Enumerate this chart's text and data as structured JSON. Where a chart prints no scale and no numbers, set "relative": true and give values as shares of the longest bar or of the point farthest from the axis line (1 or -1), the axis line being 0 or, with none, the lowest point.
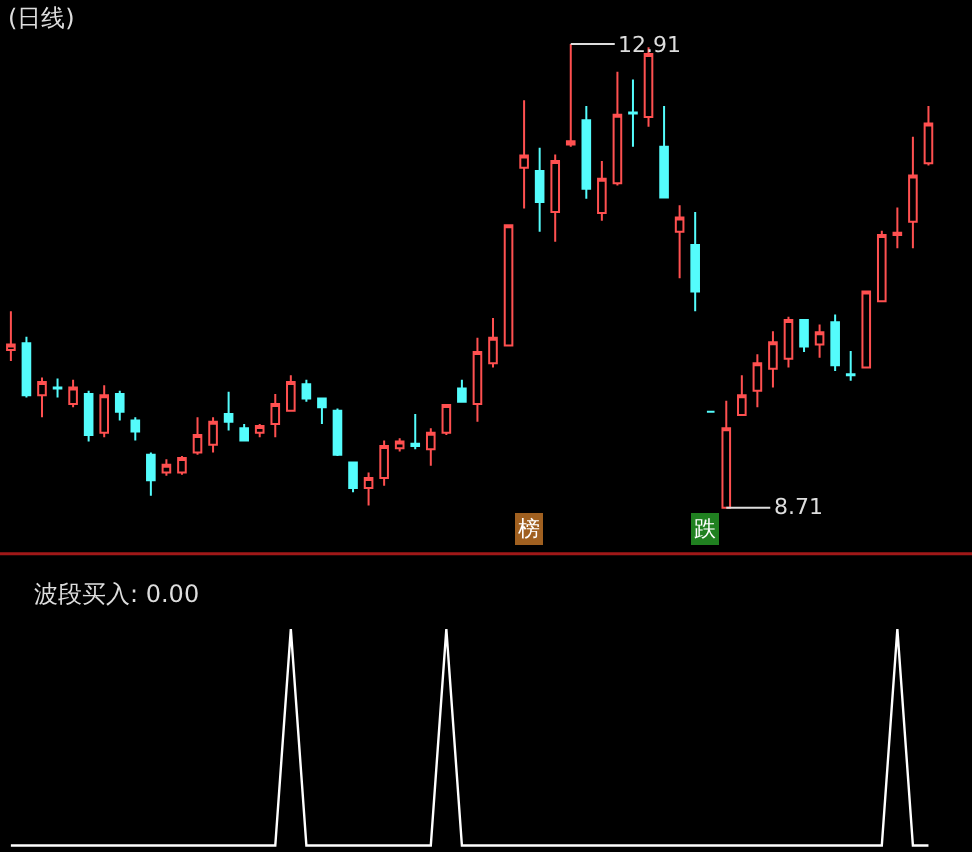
{
  "chart_data": [
    {
      "type": "candlestick",
      "title": "(日线)",
      "categories": [
        null,
        null,
        null,
        null,
        null,
        null,
        null,
        null,
        null,
        null,
        null,
        null,
        null,
        null,
        null,
        null,
        null,
        null,
        null,
        null,
        null,
        null,
        null,
        null,
        null,
        null,
        null,
        null,
        null,
        null,
        null,
        null,
        null,
        null,
        null,
        null,
        null,
        null,
        null,
        null,
        null,
        null,
        null,
        null,
        null,
        null,
        null,
        null,
        null,
        null,
        null,
        null,
        null,
        null,
        null,
        null,
        null,
        null,
        null,
        null
      ],
      "ohlc": [
        [
          10.14,
          10.49,
          10.04,
          10.19
        ],
        [
          10.2,
          10.26,
          9.71,
          9.73
        ],
        [
          9.73,
          9.89,
          9.53,
          9.85
        ],
        [
          9.8,
          9.88,
          9.71,
          9.79
        ],
        [
          9.65,
          9.87,
          9.62,
          9.8
        ],
        [
          9.74,
          9.77,
          9.31,
          9.37
        ],
        [
          9.39,
          9.82,
          9.35,
          9.73
        ],
        [
          9.74,
          9.77,
          9.5,
          9.58
        ],
        [
          9.5,
          9.53,
          9.32,
          9.4
        ],
        [
          9.19,
          9.21,
          8.82,
          8.96
        ],
        [
          9.03,
          9.15,
          9.0,
          9.1
        ],
        [
          9.03,
          9.18,
          9.01,
          9.16
        ],
        [
          9.21,
          9.53,
          9.19,
          9.37
        ],
        [
          9.28,
          9.53,
          9.21,
          9.49
        ],
        [
          9.56,
          9.76,
          9.41,
          9.49
        ],
        [
          9.43,
          9.47,
          9.31,
          9.32
        ],
        [
          9.39,
          9.47,
          9.35,
          9.45
        ],
        [
          9.47,
          9.74,
          9.35,
          9.65
        ],
        [
          9.59,
          9.91,
          9.58,
          9.85
        ],
        [
          9.83,
          9.87,
          9.67,
          9.7
        ],
        [
          9.7,
          9.71,
          9.47,
          9.62
        ],
        [
          9.59,
          9.61,
          9.18,
          9.19
        ],
        [
          9.12,
          9.13,
          8.85,
          8.89
        ],
        [
          8.89,
          9.03,
          8.73,
          8.98
        ],
        [
          8.98,
          9.32,
          8.91,
          9.27
        ],
        [
          9.25,
          9.34,
          9.22,
          9.31
        ],
        [
          9.29,
          9.56,
          9.24,
          9.27
        ],
        [
          9.24,
          9.43,
          9.09,
          9.39
        ],
        [
          9.39,
          9.64,
          9.37,
          9.64
        ],
        [
          9.79,
          9.87,
          9.67,
          9.67
        ],
        [
          9.65,
          10.25,
          9.49,
          10.12
        ],
        [
          10.02,
          10.43,
          9.98,
          10.25
        ],
        [
          10.18,
          11.27,
          10.18,
          11.27
        ],
        [
          11.79,
          12.4,
          11.42,
          11.9
        ],
        [
          11.76,
          11.97,
          11.21,
          11.48
        ],
        [
          11.39,
          11.91,
          11.12,
          11.85
        ],
        [
          12.0,
          12.91,
          11.98,
          12.03
        ],
        [
          12.22,
          12.35,
          11.51,
          11.6
        ],
        [
          11.38,
          11.85,
          11.31,
          11.69
        ],
        [
          11.65,
          12.66,
          11.63,
          12.27
        ],
        [
          12.29,
          12.59,
          11.98,
          12.28
        ],
        [
          12.25,
          12.88,
          12.16,
          12.82
        ],
        [
          11.98,
          12.35,
          11.52,
          11.52
        ],
        [
          11.21,
          11.45,
          10.79,
          11.34
        ],
        [
          11.09,
          11.39,
          10.49,
          10.67
        ],
        [
          9.58,
          9.58,
          9.58,
          9.58
        ],
        [
          8.71,
          9.68,
          8.71,
          9.43
        ],
        [
          9.55,
          9.91,
          9.55,
          9.73
        ],
        [
          9.77,
          10.1,
          9.62,
          10.02
        ],
        [
          9.97,
          10.31,
          9.8,
          10.21
        ],
        [
          10.06,
          10.44,
          9.98,
          10.41
        ],
        [
          10.41,
          10.41,
          10.12,
          10.17
        ],
        [
          10.19,
          10.37,
          10.07,
          10.3
        ],
        [
          10.39,
          10.46,
          9.95,
          10.0
        ],
        [
          9.92,
          10.13,
          9.86,
          9.91
        ],
        [
          9.98,
          10.67,
          9.98,
          10.67
        ],
        [
          10.58,
          11.22,
          10.58,
          11.18
        ],
        [
          11.18,
          11.43,
          11.06,
          11.2
        ],
        [
          11.3,
          12.07,
          11.06,
          11.72
        ],
        [
          11.83,
          12.35,
          11.81,
          12.19
        ]
      ],
      "annotations": [
        {
          "text": "12.91",
          "y": 12.91
        },
        "8.71",
        "榜",
        "跌"
      ]
    },
    {
      "type": "line",
      "title": "波段买入: 0.00",
      "relative": true,
      "categories": [
        null,
        null,
        null,
        null,
        null,
        null,
        null,
        null,
        null,
        null,
        null,
        null,
        null,
        null,
        null,
        null,
        null,
        null,
        null,
        null,
        null,
        null,
        null,
        null,
        null,
        null,
        null,
        null,
        null,
        null,
        null,
        null,
        null,
        null,
        null,
        null,
        null,
        null,
        null,
        null,
        null,
        null,
        null,
        null,
        null,
        null,
        null,
        null,
        null,
        null,
        null,
        null,
        null,
        null,
        null,
        null,
        null,
        null,
        null,
        null
      ],
      "series": [
        {
          "color": "#ffffff",
          "values": [
            0,
            0,
            0,
            0,
            0,
            0,
            0,
            0,
            0,
            0,
            0,
            0,
            0,
            0,
            0,
            0,
            0,
            0,
            1,
            0,
            0,
            0,
            0,
            0,
            0,
            0,
            0,
            0,
            1,
            0,
            0,
            0,
            0,
            0,
            0,
            0,
            0,
            0,
            0,
            0,
            0,
            0,
            0,
            0,
            0,
            0,
            0,
            0,
            0,
            0,
            0,
            0,
            0,
            0,
            0,
            0,
            0,
            1,
            0,
            0
          ]
        }
      ]
    }
  ]
}
